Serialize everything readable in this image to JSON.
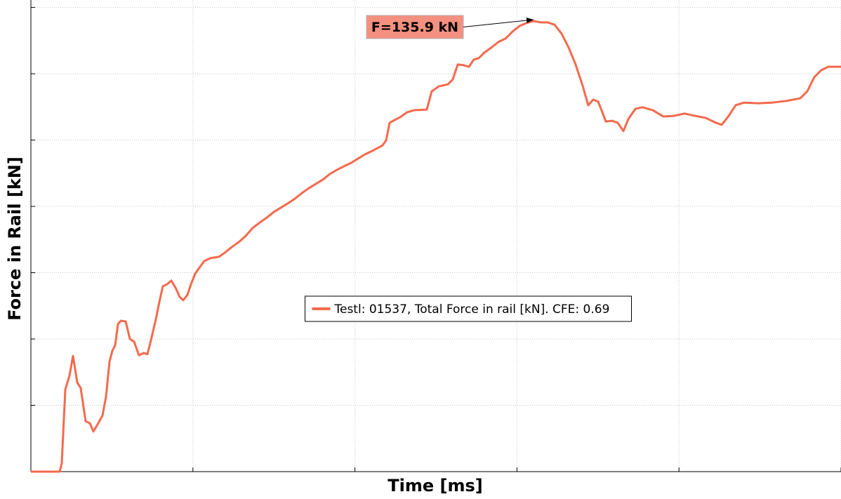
{
  "chart_data": {
    "type": "line",
    "xlabel": "Time [ms]",
    "ylabel": "Force in Rail [kN]",
    "xlim": [
      0,
      100
    ],
    "ylim": [
      0,
      140
    ],
    "xticks": [
      0,
      20,
      40,
      60,
      80,
      100
    ],
    "yticks": [
      0,
      20,
      40,
      60,
      80,
      100,
      120,
      140
    ],
    "grid": true,
    "legend": "center",
    "annotation": {
      "text": "F=135.9 kN",
      "x": 62.05,
      "y": 135.9,
      "color": "#f4907f"
    },
    "x": [
      0,
      3.55,
      3.81,
      4.25,
      4.77,
      5.2,
      5.72,
      6.15,
      6.76,
      7.28,
      7.71,
      8.32,
      8.84,
      9.27,
      9.71,
      10.05,
      10.4,
      10.75,
      11.1,
      11.7,
      12.22,
      12.74,
      13.34,
      13.95,
      14.38,
      14.82,
      15.42,
      15.86,
      16.29,
      16.81,
      17.33,
      17.85,
      18.37,
      18.8,
      19.32,
      19.76,
      20.28,
      20.88,
      21.4,
      22.18,
      23.22,
      23.92,
      24.78,
      25.65,
      26.52,
      27.38,
      28.25,
      29.12,
      29.98,
      30.85,
      31.72,
      32.58,
      33.45,
      34.32,
      35.18,
      36.05,
      36.92,
      37.78,
      38.65,
      39.51,
      40.38,
      41.25,
      42.11,
      43.41,
      43.85,
      44.28,
      44.71,
      45.58,
      46.45,
      47.31,
      48.87,
      49.48,
      50.35,
      51.47,
      52.08,
      52.69,
      53.38,
      54.07,
      54.68,
      55.29,
      55.98,
      56.85,
      57.71,
      58.58,
      59.45,
      60.31,
      61.18,
      62.05,
      62.91,
      63.78,
      64.64,
      65.51,
      66.38,
      67.24,
      68.11,
      68.8,
      69.41,
      70.02,
      70.54,
      70.97,
      71.75,
      72.44,
      73.14,
      73.74,
      74.61,
      75.48,
      76.78,
      78.08,
      79.38,
      80.68,
      81.98,
      83.28,
      84.58,
      85.27,
      86.14,
      87.0,
      88.04,
      89.77,
      91.51,
      93.24,
      94.97,
      95.84,
      96.71,
      97.57,
      98.44,
      100
    ],
    "series": [
      {
        "name": "Testl: 01537, Total Force in rail [kN]. CFE: 0.69",
        "color": "#f4694c",
        "values": [
          0,
          0,
          2.5,
          24.8,
          29.0,
          34.9,
          26.9,
          25.2,
          15.2,
          14.6,
          12.1,
          14.6,
          16.9,
          22.6,
          33.2,
          36.4,
          38.1,
          44.5,
          45.5,
          45.3,
          40.0,
          39.2,
          35.1,
          35.8,
          35.4,
          39.6,
          45.9,
          51.2,
          55.9,
          56.5,
          57.6,
          55.5,
          52.7,
          51.7,
          53.3,
          56.5,
          59.7,
          61.8,
          63.5,
          64.4,
          64.8,
          66.0,
          67.7,
          69.2,
          71.1,
          73.5,
          75.1,
          76.6,
          78.3,
          79.6,
          80.9,
          82.3,
          84.0,
          85.5,
          86.8,
          88.1,
          89.8,
          91.0,
          92.1,
          93.1,
          94.4,
          95.7,
          96.7,
          98.4,
          99.9,
          105.2,
          105.8,
          106.9,
          108.4,
          109.0,
          109.2,
          114.7,
          116.2,
          116.8,
          118.3,
          122.8,
          122.6,
          122.1,
          124.3,
          124.7,
          126.4,
          127.9,
          129.6,
          130.6,
          132.7,
          134.4,
          135.3,
          135.9,
          135.5,
          135.5,
          134.8,
          132.1,
          127.9,
          122.8,
          116.4,
          110.5,
          112.2,
          111.6,
          108.4,
          105.6,
          105.8,
          105.2,
          102.7,
          106.3,
          109.4,
          109.9,
          109.0,
          107.1,
          107.3,
          108.0,
          107.3,
          106.7,
          105.2,
          104.6,
          107.3,
          110.5,
          111.3,
          111.1,
          111.3,
          111.8,
          112.6,
          114.7,
          119.0,
          121.1,
          122.1,
          122.1
        ]
      }
    ]
  }
}
